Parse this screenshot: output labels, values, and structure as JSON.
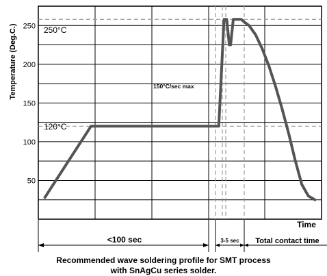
{
  "chart_data": {
    "type": "line",
    "ylabel": "Temperature (Deg.C.)",
    "xlabel": "Time",
    "ylim": [
      0,
      275
    ],
    "y_ticks": [
      50,
      100,
      150,
      200,
      250
    ],
    "grid": true,
    "x_unit": "s",
    "series": [
      {
        "x": [
          5,
          40,
          137,
          141,
          143,
          145,
          146,
          148,
          150,
          152,
          154,
          156,
          160,
          165,
          170,
          175,
          180,
          185,
          190,
          195,
          200,
          205,
          210
        ],
        "y": [
          28,
          120,
          120,
          258,
          258,
          225,
          225,
          258,
          258,
          258,
          258,
          255,
          250,
          238,
          220,
          198,
          172,
          143,
          111,
          76,
          45,
          30,
          25
        ]
      }
    ],
    "annotations": {
      "ref_250": "250°C",
      "ref_120": "120°C",
      "ramp_rate": "150°C/sec max",
      "preheat_span": "<100 sec",
      "dwell_span": "3-5 sec",
      "contact_span": "Total contact time"
    },
    "caption_line1": "Recommended wave soldering profile for SMT process",
    "caption_line2": "with SnAgCu series solder.",
    "colors": {
      "curve": "#545454",
      "grid": "#000000",
      "reference": "#9a9a9a"
    }
  }
}
